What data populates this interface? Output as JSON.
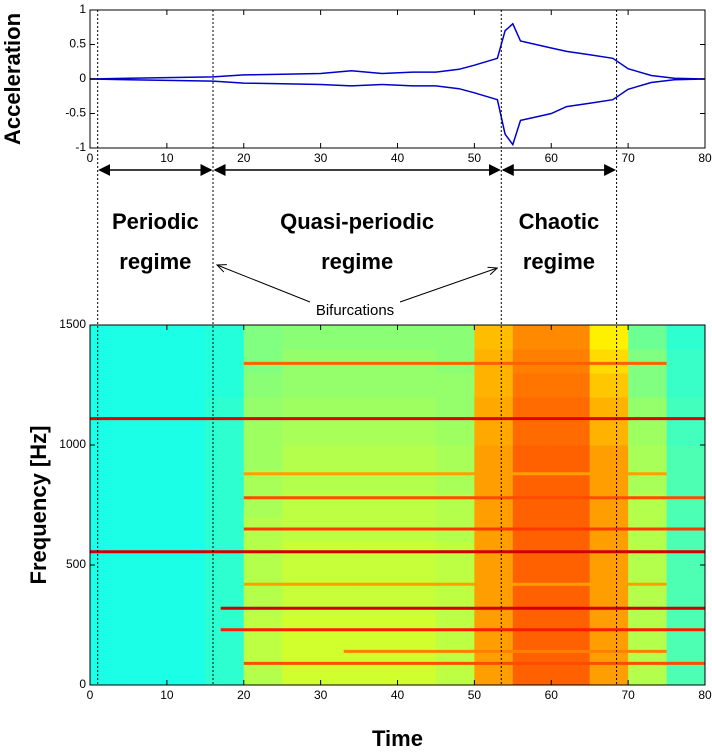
{
  "chart_data": [
    {
      "type": "line",
      "ylabel": "Acceleration",
      "xlim": [
        0,
        80
      ],
      "xticks": [
        0,
        10,
        20,
        30,
        40,
        50,
        60,
        70,
        80
      ],
      "ylim": [
        -1,
        1
      ],
      "yticks": [
        -1,
        -0.5,
        0,
        0.5,
        1
      ],
      "x": [
        0,
        5,
        10,
        16,
        20,
        25,
        30,
        34,
        38,
        42,
        45,
        48,
        50,
        53,
        54,
        55,
        56,
        58,
        60,
        62,
        65,
        68,
        70,
        73,
        76,
        80
      ],
      "series": [
        {
          "color": "#0000cc",
          "values": [
            0,
            0.01,
            0.02,
            0.03,
            0.06,
            0.07,
            0.08,
            0.12,
            0.08,
            0.1,
            0.1,
            0.14,
            0.2,
            0.3,
            0.7,
            0.8,
            0.55,
            0.5,
            0.45,
            0.4,
            0.35,
            0.3,
            0.15,
            0.05,
            0.01,
            0
          ]
        },
        {
          "color": "#0000cc",
          "values": [
            0,
            -0.01,
            -0.02,
            -0.03,
            -0.06,
            -0.07,
            -0.08,
            -0.1,
            -0.08,
            -0.1,
            -0.1,
            -0.14,
            -0.2,
            -0.3,
            -0.8,
            -0.95,
            -0.6,
            -0.55,
            -0.5,
            -0.4,
            -0.35,
            -0.3,
            -0.15,
            -0.05,
            -0.01,
            0
          ]
        }
      ]
    },
    {
      "type": "heatmap",
      "xlabel": "Time",
      "ylabel": "Frequency [Hz]",
      "colormap": "jet",
      "xlim": [
        0,
        80
      ],
      "xticks": [
        0,
        10,
        20,
        30,
        40,
        50,
        60,
        70,
        80
      ],
      "ylim": [
        0,
        1500
      ],
      "yticks": [
        0,
        500,
        1000,
        1500
      ],
      "x_bins": [
        0,
        5,
        10,
        15,
        20,
        25,
        30,
        35,
        40,
        45,
        50,
        55,
        60,
        65,
        70,
        75,
        80
      ],
      "y_bins": [
        0,
        100,
        200,
        300,
        400,
        500,
        600,
        700,
        800,
        900,
        1000,
        1100,
        1200,
        1300,
        1400,
        1500
      ],
      "values": [
        [
          0.4,
          0.4,
          0.4,
          0.42,
          0.55,
          0.58,
          0.58,
          0.58,
          0.58,
          0.56,
          0.72,
          0.78,
          0.78,
          0.72,
          0.55,
          0.45
        ],
        [
          0.4,
          0.4,
          0.4,
          0.42,
          0.56,
          0.58,
          0.58,
          0.58,
          0.58,
          0.56,
          0.72,
          0.78,
          0.78,
          0.72,
          0.55,
          0.45
        ],
        [
          0.4,
          0.4,
          0.4,
          0.42,
          0.56,
          0.58,
          0.58,
          0.58,
          0.58,
          0.56,
          0.72,
          0.78,
          0.78,
          0.72,
          0.55,
          0.45
        ],
        [
          0.4,
          0.4,
          0.4,
          0.42,
          0.55,
          0.57,
          0.57,
          0.57,
          0.57,
          0.56,
          0.72,
          0.78,
          0.78,
          0.72,
          0.55,
          0.45
        ],
        [
          0.4,
          0.4,
          0.4,
          0.42,
          0.55,
          0.57,
          0.57,
          0.57,
          0.57,
          0.56,
          0.72,
          0.78,
          0.78,
          0.72,
          0.55,
          0.45
        ],
        [
          0.4,
          0.4,
          0.4,
          0.42,
          0.55,
          0.57,
          0.57,
          0.57,
          0.57,
          0.56,
          0.72,
          0.78,
          0.78,
          0.72,
          0.55,
          0.45
        ],
        [
          0.4,
          0.4,
          0.4,
          0.42,
          0.55,
          0.56,
          0.56,
          0.56,
          0.56,
          0.55,
          0.72,
          0.78,
          0.78,
          0.72,
          0.55,
          0.45
        ],
        [
          0.4,
          0.4,
          0.4,
          0.42,
          0.54,
          0.56,
          0.56,
          0.56,
          0.56,
          0.55,
          0.72,
          0.78,
          0.78,
          0.72,
          0.55,
          0.45
        ],
        [
          0.4,
          0.4,
          0.4,
          0.42,
          0.54,
          0.55,
          0.55,
          0.55,
          0.55,
          0.54,
          0.72,
          0.78,
          0.78,
          0.72,
          0.54,
          0.45
        ],
        [
          0.4,
          0.4,
          0.4,
          0.42,
          0.53,
          0.55,
          0.55,
          0.55,
          0.55,
          0.54,
          0.72,
          0.78,
          0.78,
          0.72,
          0.54,
          0.45
        ],
        [
          0.4,
          0.4,
          0.4,
          0.42,
          0.53,
          0.54,
          0.54,
          0.54,
          0.54,
          0.53,
          0.71,
          0.77,
          0.77,
          0.7,
          0.53,
          0.44
        ],
        [
          0.4,
          0.4,
          0.4,
          0.42,
          0.52,
          0.53,
          0.53,
          0.53,
          0.53,
          0.52,
          0.71,
          0.77,
          0.77,
          0.7,
          0.52,
          0.44
        ],
        [
          0.4,
          0.4,
          0.4,
          0.41,
          0.51,
          0.52,
          0.52,
          0.52,
          0.52,
          0.52,
          0.7,
          0.76,
          0.76,
          0.68,
          0.5,
          0.43
        ],
        [
          0.4,
          0.4,
          0.4,
          0.41,
          0.5,
          0.52,
          0.52,
          0.52,
          0.52,
          0.51,
          0.7,
          0.75,
          0.75,
          0.66,
          0.5,
          0.43
        ],
        [
          0.4,
          0.4,
          0.4,
          0.41,
          0.5,
          0.51,
          0.51,
          0.51,
          0.51,
          0.51,
          0.69,
          0.74,
          0.74,
          0.64,
          0.48,
          0.42
        ]
      ],
      "ridges": [
        {
          "y": 555,
          "x": [
            0,
            80
          ],
          "level": 0.92
        },
        {
          "y": 1110,
          "x": [
            0,
            80
          ],
          "level": 0.9
        },
        {
          "y": 320,
          "x": [
            17,
            80
          ],
          "level": 0.92
        },
        {
          "y": 230,
          "x": [
            17,
            80
          ],
          "level": 0.85
        },
        {
          "y": 90,
          "x": [
            20,
            80
          ],
          "level": 0.8
        },
        {
          "y": 650,
          "x": [
            20,
            80
          ],
          "level": 0.82
        },
        {
          "y": 780,
          "x": [
            20,
            80
          ],
          "level": 0.8
        },
        {
          "y": 1340,
          "x": [
            20,
            75
          ],
          "level": 0.78
        },
        {
          "y": 140,
          "x": [
            33,
            75
          ],
          "level": 0.75
        },
        {
          "y": 420,
          "x": [
            20,
            75
          ],
          "level": 0.72
        },
        {
          "y": 880,
          "x": [
            20,
            75
          ],
          "level": 0.72
        }
      ]
    }
  ],
  "annotations": {
    "boundaries": [
      1,
      16,
      53.5,
      68.5
    ],
    "regimes": [
      "Periodic regime",
      "Quasi-periodic regime",
      "Chaotic regime"
    ],
    "bifurcation_label": "Bifurcations"
  }
}
